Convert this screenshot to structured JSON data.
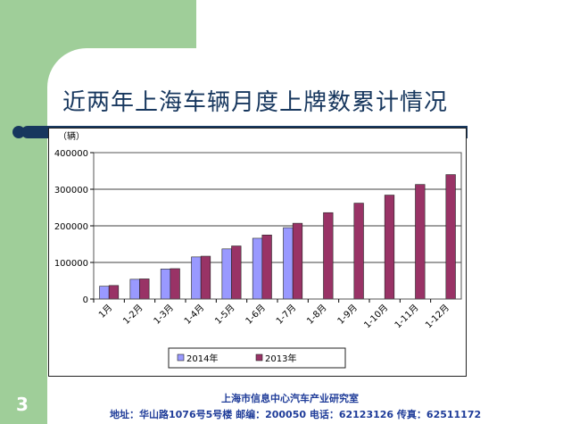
{
  "slide": {
    "title": "近两年上海车辆月度上牌数累计情况",
    "page_number": "3",
    "footer_org": "上海市信息中心汽车产业研究室",
    "footer_contact": "地址：华山路1076号5号楼   邮编：200050  电话：62123126  传真：62511172"
  },
  "chart_data": {
    "type": "bar",
    "unit_label": "（辆）",
    "categories": [
      "1月",
      "1-2月",
      "1-3月",
      "1-4月",
      "1-5月",
      "1-6月",
      "1-7月",
      "1-8月",
      "1-9月",
      "1-10月",
      "1-11月",
      "1-12月"
    ],
    "series": [
      {
        "name": "2014年",
        "color": "#9999ff",
        "values": [
          35000,
          54000,
          82000,
          115000,
          137000,
          166000,
          195000,
          null,
          null,
          null,
          null,
          null
        ]
      },
      {
        "name": "2013年",
        "color": "#993366",
        "values": [
          37000,
          55000,
          83000,
          117000,
          145000,
          175000,
          207000,
          236000,
          262000,
          284000,
          313000,
          340000
        ]
      }
    ],
    "ylim": [
      0,
      400000
    ],
    "yticks": [
      0,
      100000,
      200000,
      300000,
      400000
    ],
    "grid": true,
    "legend_position": "bottom"
  }
}
